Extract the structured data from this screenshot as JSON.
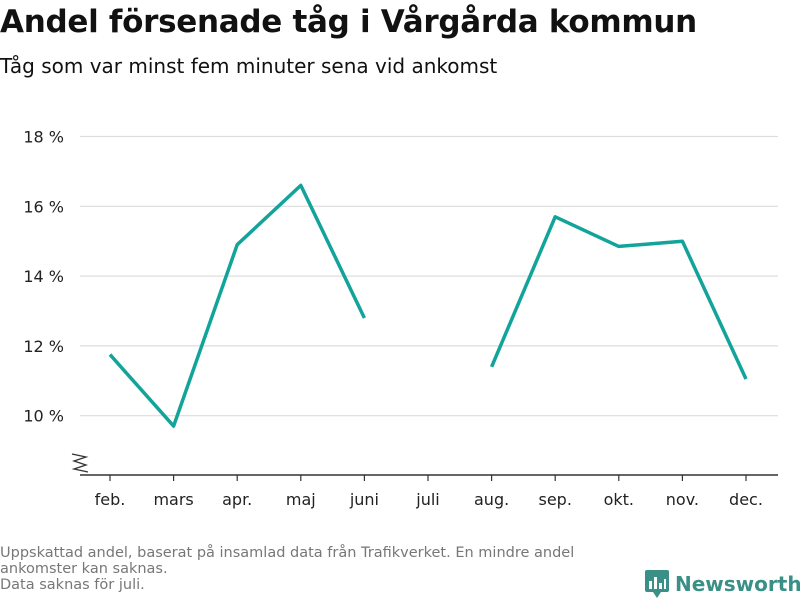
{
  "title": "Andel försenade tåg i Vårgårda kommun",
  "subtitle": "Tåg som var minst fem minuter sena vid ankomst",
  "footnote": {
    "line1": "Uppskattad andel, baserat på insamlad data från Trafikverket. En mindre andel ankomster kan saknas.",
    "line2": "Data saknas för juli."
  },
  "brand": {
    "name": "Newsworthy",
    "icon": "newsworthy-logo-icon",
    "color": "#3a8f86"
  },
  "chart_data": {
    "type": "line",
    "categories": [
      "feb.",
      "mars",
      "apr.",
      "maj",
      "juni",
      "juli",
      "aug.",
      "sep.",
      "okt.",
      "nov.",
      "dec."
    ],
    "series": [
      {
        "values": [
          11.75,
          9.7,
          14.9,
          16.6,
          12.8,
          null,
          11.4,
          15.7,
          14.85,
          15.0,
          11.05
        ],
        "color": "#12a39a"
      }
    ],
    "y_ticks": [
      10,
      12,
      14,
      16,
      18
    ],
    "y_tick_labels": [
      "10 %",
      "12 %",
      "14 %",
      "16 %",
      "18 %"
    ],
    "ylim": [
      8.3,
      18
    ],
    "y_axis_break": true,
    "grid": true,
    "legend": "none",
    "xlabel": "",
    "ylabel": ""
  }
}
